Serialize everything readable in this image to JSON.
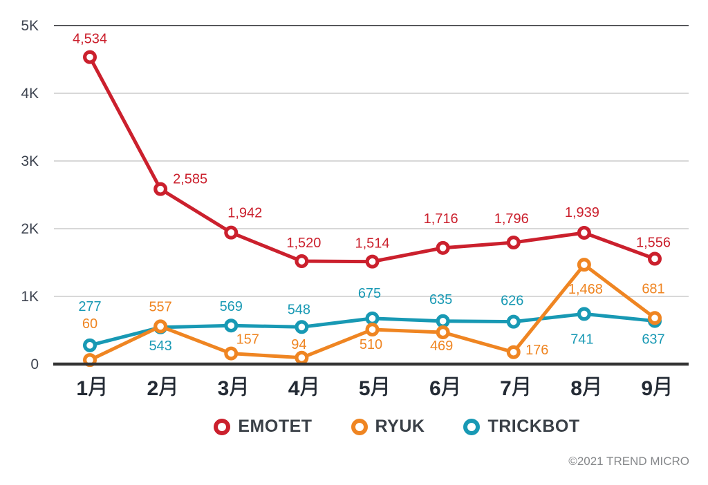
{
  "chart_data": {
    "type": "line",
    "categories": [
      "1月",
      "2月",
      "3月",
      "4月",
      "5月",
      "6月",
      "7月",
      "8月",
      "9月"
    ],
    "ylim": [
      0,
      5000
    ],
    "y_tick_values": [
      0,
      1000,
      2000,
      3000,
      4000,
      5000
    ],
    "y_tick_labels": [
      "0",
      "1K",
      "2K",
      "3K",
      "4K",
      "5K"
    ],
    "grid": true,
    "legend_position": "bottom",
    "series": [
      {
        "name": "EMOTET",
        "color": "#CB202D",
        "values": [
          4534,
          2585,
          1942,
          1520,
          1514,
          1716,
          1796,
          1939,
          1556
        ],
        "labels": [
          "4,534",
          "2,585",
          "1,942",
          "1,520",
          "1,514",
          "1,716",
          "1,796",
          "1,939",
          "1,556"
        ],
        "label_offsets": [
          [
            0,
            -20
          ],
          [
            43,
            -8
          ],
          [
            20,
            -22
          ],
          [
            3,
            -20
          ],
          [
            0,
            -20
          ],
          [
            -3,
            -36
          ],
          [
            -3,
            -28
          ],
          [
            -3,
            -23
          ],
          [
            -2,
            -17
          ]
        ]
      },
      {
        "name": "RYUK",
        "color": "#EF8522",
        "values": [
          60,
          557,
          157,
          94,
          510,
          469,
          176,
          1468,
          681
        ],
        "labels": [
          "60",
          "557",
          "157",
          "94",
          "510",
          "469",
          "176",
          "1,468",
          "681"
        ],
        "label_offsets": [
          [
            0,
            -46
          ],
          [
            0,
            -22
          ],
          [
            24,
            -14
          ],
          [
            -4,
            -13
          ],
          [
            -2,
            28
          ],
          [
            -2,
            26
          ],
          [
            34,
            3
          ],
          [
            2,
            42
          ],
          [
            -2,
            -36
          ]
        ]
      },
      {
        "name": "TRICKBOT",
        "color": "#1899B4",
        "values": [
          277,
          543,
          569,
          548,
          675,
          635,
          626,
          741,
          637
        ],
        "labels": [
          "277",
          "543",
          "569",
          "548",
          "675",
          "635",
          "626",
          "741",
          "637"
        ],
        "label_offsets": [
          [
            0,
            -50
          ],
          [
            0,
            33
          ],
          [
            0,
            -21
          ],
          [
            -4,
            -19
          ],
          [
            -4,
            -30
          ],
          [
            -3,
            -25
          ],
          [
            -2,
            -24
          ],
          [
            -3,
            43
          ],
          [
            -2,
            33
          ]
        ]
      }
    ]
  },
  "footer": {
    "copyright": "©2021 TREND MICRO"
  }
}
